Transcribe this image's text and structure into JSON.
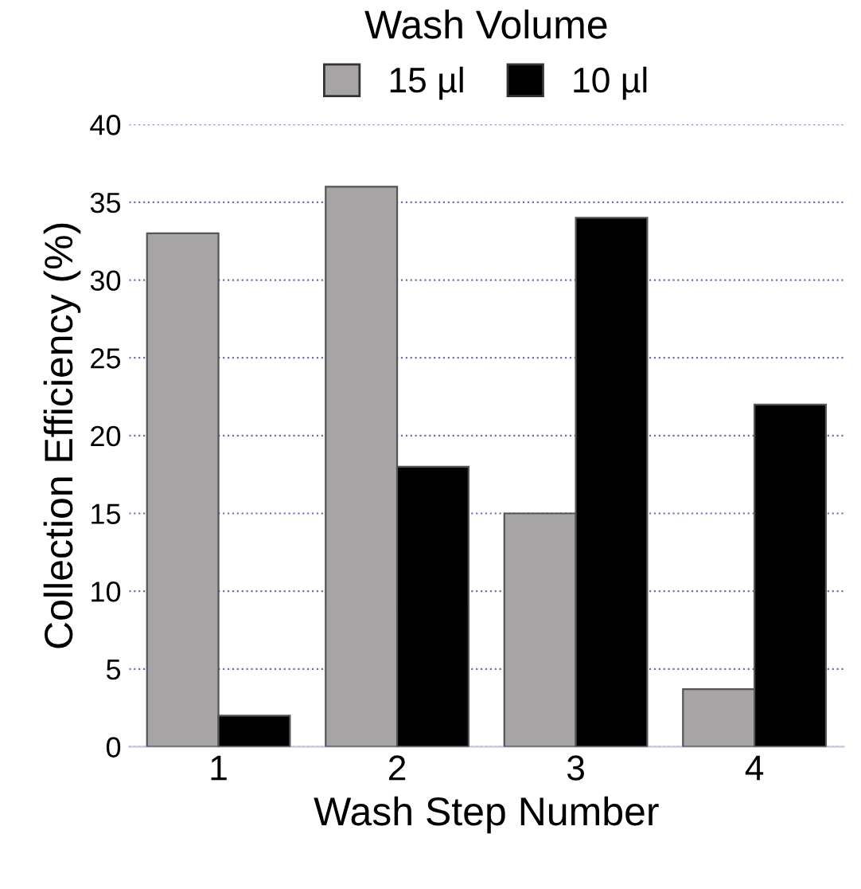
{
  "chart_data": {
    "type": "bar",
    "xlabel": "Wash Step Number",
    "ylabel": "Collection Efficiency (%)",
    "legend_title": "Wash Volume",
    "categories": [
      "1",
      "2",
      "3",
      "4"
    ],
    "series": [
      {
        "name": "15 µl",
        "color": "#a7a4a5",
        "values": [
          33,
          36,
          15,
          3.7
        ]
      },
      {
        "name": "10 µl",
        "color": "#000000",
        "values": [
          2,
          18,
          34,
          22
        ]
      }
    ],
    "ylim": [
      0,
      40
    ],
    "yticks": [
      0,
      5,
      10,
      15,
      20,
      25,
      30,
      35,
      40
    ],
    "grid": "y",
    "legend": "top"
  }
}
